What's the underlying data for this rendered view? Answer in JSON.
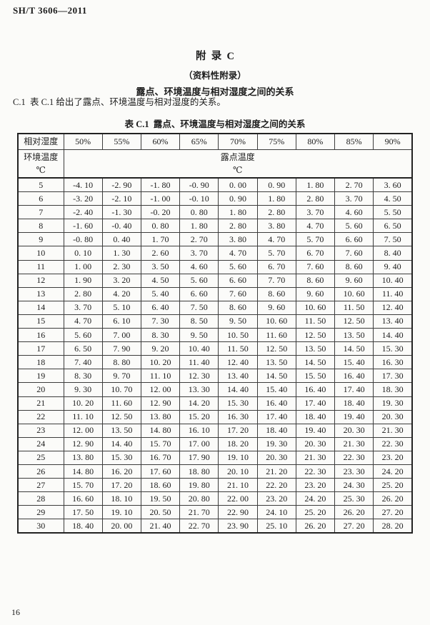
{
  "page": {
    "doc_number": "SH/T 3606—2011",
    "page_number": "16"
  },
  "appendix": {
    "title": "附  录  C",
    "subtitle": "（资料性附录）",
    "heading": "露点、环境温度与相对湿度之间的关系",
    "clause": "C.1  表 C.1 给出了露点、环境温度与相对湿度的关系。",
    "table_caption": "表 C.1  露点、环境温度与相对湿度之间的关系"
  },
  "table": {
    "corner_header": "相对湿度",
    "humidity_columns": [
      "50%",
      "55%",
      "60%",
      "65%",
      "70%",
      "75%",
      "80%",
      "85%",
      "90%"
    ],
    "row_header_title": "环境温度",
    "row_header_unit": "℃",
    "span_header_title": "露点温度",
    "span_header_unit": "℃",
    "rows": [
      {
        "temp": "5",
        "values": [
          "-4. 10",
          "-2. 90",
          "-1. 80",
          "-0. 90",
          "0. 00",
          "0. 90",
          "1. 80",
          "2. 70",
          "3. 60"
        ]
      },
      {
        "temp": "6",
        "values": [
          "-3. 20",
          "-2. 10",
          "-1. 00",
          "-0. 10",
          "0. 90",
          "1. 80",
          "2. 80",
          "3. 70",
          "4. 50"
        ]
      },
      {
        "temp": "7",
        "values": [
          "-2. 40",
          "-1. 30",
          "-0. 20",
          "0. 80",
          "1. 80",
          "2. 80",
          "3. 70",
          "4. 60",
          "5. 50"
        ]
      },
      {
        "temp": "8",
        "values": [
          "-1. 60",
          "-0. 40",
          "0. 80",
          "1. 80",
          "2. 80",
          "3. 80",
          "4. 70",
          "5. 60",
          "6. 50"
        ]
      },
      {
        "temp": "9",
        "values": [
          "-0. 80",
          "0. 40",
          "1. 70",
          "2. 70",
          "3. 80",
          "4. 70",
          "5. 70",
          "6. 60",
          "7. 50"
        ]
      },
      {
        "temp": "10",
        "values": [
          "0. 10",
          "1. 30",
          "2. 60",
          "3. 70",
          "4. 70",
          "5. 70",
          "6. 70",
          "7. 60",
          "8. 40"
        ]
      },
      {
        "temp": "11",
        "values": [
          "1. 00",
          "2. 30",
          "3. 50",
          "4. 60",
          "5. 60",
          "6. 70",
          "7. 60",
          "8. 60",
          "9. 40"
        ]
      },
      {
        "temp": "12",
        "values": [
          "1. 90",
          "3. 20",
          "4. 50",
          "5. 60",
          "6. 60",
          "7. 70",
          "8. 60",
          "9. 60",
          "10. 40"
        ]
      },
      {
        "temp": "13",
        "values": [
          "2. 80",
          "4. 20",
          "5. 40",
          "6. 60",
          "7. 60",
          "8. 60",
          "9. 60",
          "10. 60",
          "11. 40"
        ]
      },
      {
        "temp": "14",
        "values": [
          "3. 70",
          "5. 10",
          "6. 40",
          "7. 50",
          "8. 60",
          "9. 60",
          "10. 60",
          "11. 50",
          "12. 40"
        ]
      },
      {
        "temp": "15",
        "values": [
          "4. 70",
          "6. 10",
          "7. 30",
          "8. 50",
          "9. 50",
          "10. 60",
          "11. 50",
          "12. 50",
          "13. 40"
        ]
      },
      {
        "temp": "16",
        "values": [
          "5. 60",
          "7. 00",
          "8. 30",
          "9. 50",
          "10. 50",
          "11. 60",
          "12. 50",
          "13. 50",
          "14. 40"
        ]
      },
      {
        "temp": "17",
        "values": [
          "6. 50",
          "7. 90",
          "9. 20",
          "10. 40",
          "11. 50",
          "12. 50",
          "13. 50",
          "14. 50",
          "15. 30"
        ]
      },
      {
        "temp": "18",
        "values": [
          "7. 40",
          "8. 80",
          "10. 20",
          "11. 40",
          "12. 40",
          "13. 50",
          "14. 50",
          "15. 40",
          "16. 30"
        ]
      },
      {
        "temp": "19",
        "values": [
          "8. 30",
          "9. 70",
          "11. 10",
          "12. 30",
          "13. 40",
          "14. 50",
          "15. 50",
          "16. 40",
          "17. 30"
        ]
      },
      {
        "temp": "20",
        "values": [
          "9. 30",
          "10. 70",
          "12. 00",
          "13. 30",
          "14. 40",
          "15. 40",
          "16. 40",
          "17. 40",
          "18. 30"
        ]
      },
      {
        "temp": "21",
        "values": [
          "10. 20",
          "11. 60",
          "12. 90",
          "14. 20",
          "15. 30",
          "16. 40",
          "17. 40",
          "18. 40",
          "19. 30"
        ]
      },
      {
        "temp": "22",
        "values": [
          "11. 10",
          "12. 50",
          "13. 80",
          "15. 20",
          "16. 30",
          "17. 40",
          "18. 40",
          "19. 40",
          "20. 30"
        ]
      },
      {
        "temp": "23",
        "values": [
          "12. 00",
          "13. 50",
          "14. 80",
          "16. 10",
          "17. 20",
          "18. 40",
          "19. 40",
          "20. 30",
          "21. 30"
        ]
      },
      {
        "temp": "24",
        "values": [
          "12. 90",
          "14. 40",
          "15. 70",
          "17. 00",
          "18. 20",
          "19. 30",
          "20. 30",
          "21. 30",
          "22. 30"
        ]
      },
      {
        "temp": "25",
        "values": [
          "13. 80",
          "15. 30",
          "16. 70",
          "17. 90",
          "19. 10",
          "20. 30",
          "21. 30",
          "22. 30",
          "23. 20"
        ]
      },
      {
        "temp": "26",
        "values": [
          "14. 80",
          "16. 20",
          "17. 60",
          "18. 80",
          "20. 10",
          "21. 20",
          "22. 30",
          "23. 30",
          "24. 20"
        ]
      },
      {
        "temp": "27",
        "values": [
          "15. 70",
          "17. 20",
          "18. 60",
          "19. 80",
          "21. 10",
          "22. 20",
          "23. 20",
          "24. 30",
          "25. 20"
        ]
      },
      {
        "temp": "28",
        "values": [
          "16. 60",
          "18. 10",
          "19. 50",
          "20. 80",
          "22. 00",
          "23. 20",
          "24. 20",
          "25. 30",
          "26. 20"
        ]
      },
      {
        "temp": "29",
        "values": [
          "17. 50",
          "19. 10",
          "20. 50",
          "21. 70",
          "22. 90",
          "24. 10",
          "25. 20",
          "26. 20",
          "27. 20"
        ]
      },
      {
        "temp": "30",
        "values": [
          "18. 40",
          "20. 00",
          "21. 40",
          "22. 70",
          "23. 90",
          "25. 10",
          "26. 20",
          "27. 20",
          "28. 20"
        ]
      }
    ]
  }
}
